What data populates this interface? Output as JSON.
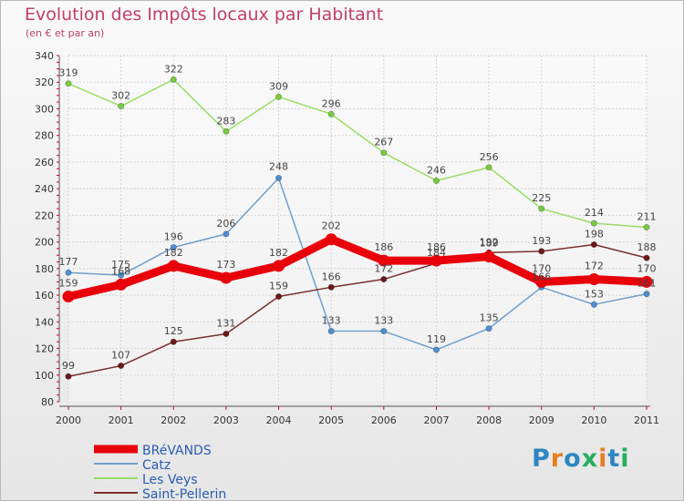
{
  "chart_data": {
    "type": "line",
    "title": "Evolution des Impôts locaux par Habitant",
    "subtitle": "(en € et par an)",
    "categories": [
      "2000",
      "2001",
      "2002",
      "2003",
      "2004",
      "2005",
      "2006",
      "2007",
      "2008",
      "2009",
      "2010",
      "2011"
    ],
    "ylim": [
      80,
      340
    ],
    "yticks": [
      80,
      100,
      120,
      140,
      160,
      180,
      200,
      220,
      240,
      260,
      280,
      300,
      320,
      340
    ],
    "grid": true,
    "legend_position": "bottom-left",
    "series": [
      {
        "name": "BRéVANDS",
        "color": "#e8000b",
        "marker_color": "#e8000b",
        "values": [
          159,
          168,
          182,
          173,
          182,
          202,
          186,
          186,
          189,
          170,
          172,
          170
        ]
      },
      {
        "name": "Catz",
        "color": "#6f9fcb",
        "marker_color": "#4d8fd0",
        "values": [
          177,
          175,
          196,
          206,
          248,
          133,
          133,
          119,
          135,
          166,
          153,
          161
        ]
      },
      {
        "name": "Les Veys",
        "color": "#99dd66",
        "marker_color": "#7ac943",
        "values": [
          319,
          302,
          322,
          283,
          309,
          296,
          267,
          246,
          256,
          225,
          214,
          211
        ]
      },
      {
        "name": "Saint-Pellerin",
        "color": "#7a2f2f",
        "marker_color": "#6b1a1a",
        "values": [
          99,
          107,
          125,
          131,
          159,
          166,
          172,
          184,
          192,
          193,
          198,
          188
        ]
      }
    ]
  },
  "logo": {
    "text": "Proxiti",
    "letters": [
      "P",
      "r",
      "o",
      "x",
      "i",
      "t",
      "i"
    ],
    "colors": [
      "#2e86c1",
      "#e67e22",
      "#2e86c1",
      "#27ae60",
      "#e67e22",
      "#2e86c1",
      "#27ae60"
    ]
  }
}
